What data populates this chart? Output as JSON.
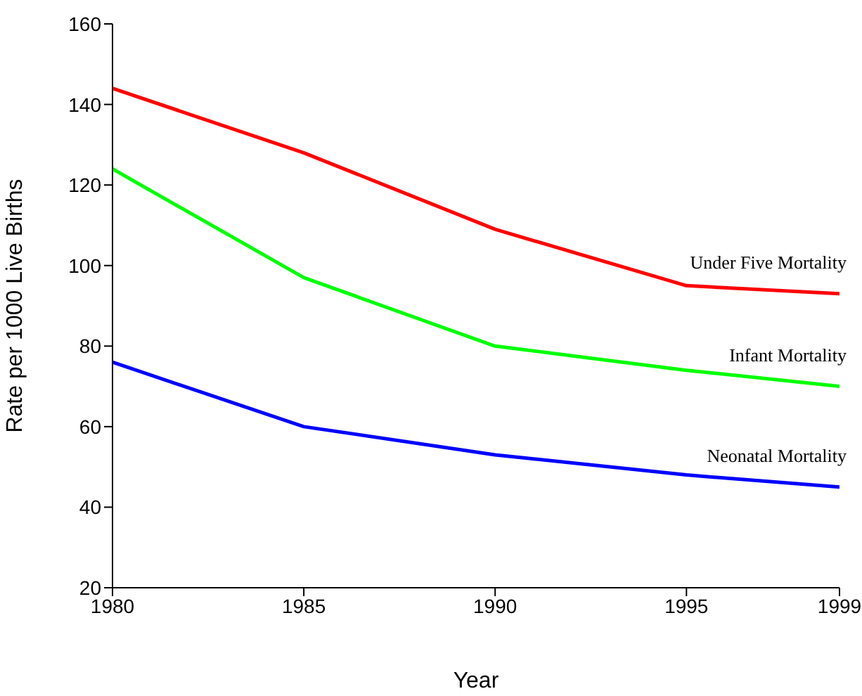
{
  "chart_data": {
    "type": "line",
    "xlabel": "Year",
    "ylabel": "Rate per 1000 Live Births",
    "x": [
      1980,
      1985,
      1990,
      1995,
      1999
    ],
    "series": [
      {
        "name": "Under Five Mortality",
        "color": "#ff0000",
        "values": [
          144,
          128,
          109,
          95,
          93
        ]
      },
      {
        "name": "Infant Mortality",
        "color": "#00ff00",
        "values": [
          124,
          97,
          80,
          74,
          70
        ]
      },
      {
        "name": "Neonatal Mortality",
        "color": "#0000ff",
        "values": [
          76,
          60,
          53,
          48,
          45
        ]
      }
    ],
    "xlim": [
      1980,
      1999
    ],
    "xticks": [
      1980,
      1985,
      1990,
      1995,
      1999
    ],
    "ylim": [
      20,
      160
    ],
    "yticks": [
      20,
      40,
      60,
      80,
      100,
      120,
      140,
      160
    ],
    "grid": false,
    "legend": false,
    "marker": "none",
    "line_style": "solid"
  }
}
